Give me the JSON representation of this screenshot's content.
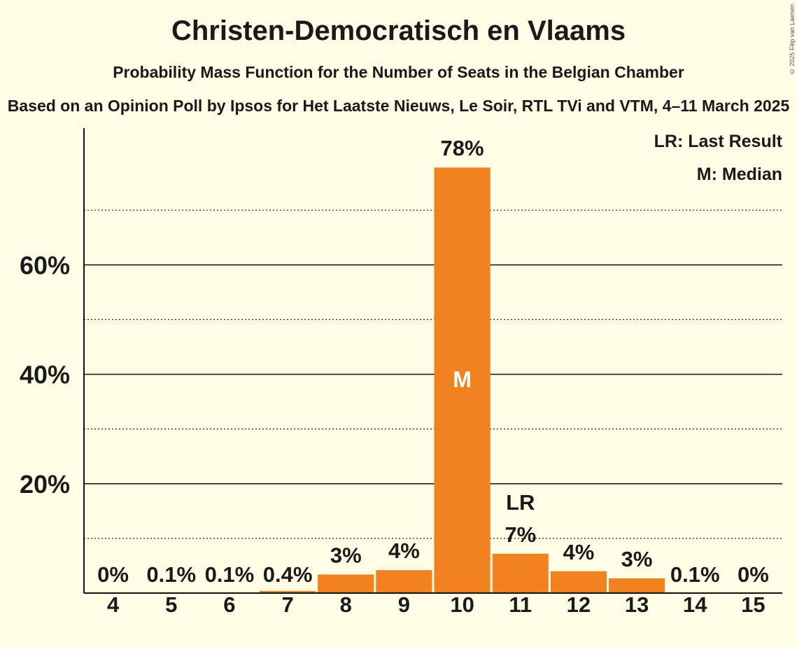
{
  "title": "Christen-Democratisch en Vlaams",
  "subtitle": "Probability Mass Function for the Number of Seats in the Belgian Chamber",
  "source": "Based on an Opinion Poll by Ipsos for Het Laatste Nieuws, Le Soir, RTL TVi and VTM, 4–11 March 2025",
  "copyright": "© 2025 Filip van Laenen",
  "legend": {
    "last_result": "LR: Last Result",
    "median": "M: Median"
  },
  "colors": {
    "bar": "#F28220",
    "background": "#FFFDE6",
    "text": "#1a1a1a"
  },
  "chart_data": {
    "type": "bar",
    "categories": [
      "4",
      "5",
      "6",
      "7",
      "8",
      "9",
      "10",
      "11",
      "12",
      "13",
      "14",
      "15"
    ],
    "values": [
      0,
      0.1,
      0.1,
      0.4,
      3.4,
      4.2,
      77.8,
      7.2,
      4.0,
      2.7,
      0.1,
      0
    ],
    "labels": [
      "0%",
      "0.1%",
      "0.1%",
      "0.4%",
      "3%",
      "4%",
      "78%",
      "7%",
      "4%",
      "3%",
      "0.1%",
      "0%"
    ],
    "ylim": [
      0,
      85
    ],
    "yticks": [
      20,
      40,
      60
    ],
    "ytick_labels": [
      "20%",
      "40%",
      "60%"
    ],
    "minor_gridlines": [
      10,
      30,
      50,
      70
    ],
    "median_seat": "10",
    "median_marker": "M",
    "last_result_seat": "11",
    "last_result_marker": "LR",
    "legend_position": "top-right"
  }
}
